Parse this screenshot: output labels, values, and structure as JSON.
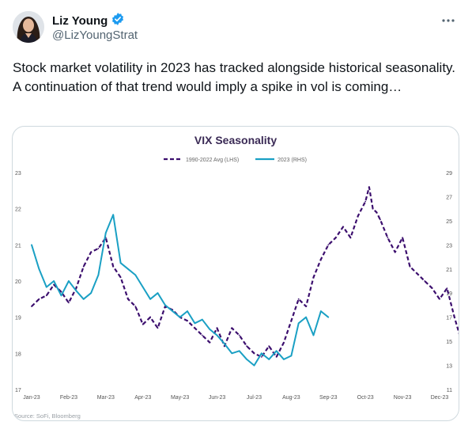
{
  "author": {
    "display_name": "Liz Young",
    "handle": "@LizYoungStrat",
    "verified": true,
    "verified_color": "#1d9bf0"
  },
  "icons": {
    "verified": "verified-badge-icon",
    "more": "more-options-icon"
  },
  "tweet": {
    "text": "Stock market volatility in 2023 has tracked alongside historical seasonality. A continuation of that trend would imply a spike in vol is coming…"
  },
  "chart_data": {
    "type": "line",
    "title": "VIX Seasonality",
    "source": "Source: SoFi, Bloomberg",
    "grid": false,
    "legend_position": "top",
    "x_tick_labels": [
      "Jan-23",
      "Feb-23",
      "Mar-23",
      "Apr-23",
      "May-23",
      "Jun-23",
      "Jul-23",
      "Aug-23",
      "Sep-23",
      "Oct-23",
      "Nov-23",
      "Dec-23"
    ],
    "y_left": {
      "ticks": [
        "17",
        "18",
        "19",
        "20",
        "21",
        "22",
        "23"
      ],
      "ylim": [
        17,
        23
      ]
    },
    "y_right": {
      "ticks": [
        "11",
        "13",
        "15",
        "17",
        "19",
        "21",
        "23",
        "25",
        "27",
        "29"
      ],
      "ylim": [
        11,
        29
      ]
    },
    "series": [
      {
        "name": "1990-2022 Avg (LHS)",
        "axis": "left",
        "color": "#3c0f6e",
        "dashed": true,
        "x": [
          0,
          0.2,
          0.4,
          0.6,
          0.8,
          1,
          1.2,
          1.4,
          1.6,
          1.8,
          2,
          2.2,
          2.4,
          2.6,
          2.8,
          3,
          3.2,
          3.4,
          3.6,
          3.8,
          4,
          4.2,
          4.4,
          4.6,
          4.8,
          5,
          5.2,
          5.4,
          5.6,
          5.8,
          6,
          6.2,
          6.4,
          6.6,
          6.8,
          7,
          7.2,
          7.4,
          7.6,
          7.8,
          8,
          8.2,
          8.4,
          8.6,
          8.8,
          9,
          9.1,
          9.2,
          9.3,
          9.4,
          9.6,
          9.8,
          10,
          10.2,
          10.4,
          10.6,
          10.8,
          11,
          11.2,
          11.4,
          11.6
        ],
        "y": [
          19.3,
          19.5,
          19.6,
          19.9,
          19.7,
          19.4,
          19.8,
          20.4,
          20.8,
          20.9,
          21.2,
          20.4,
          20.1,
          19.5,
          19.3,
          18.8,
          19.0,
          18.7,
          19.3,
          19.2,
          19.0,
          18.9,
          18.7,
          18.5,
          18.3,
          18.7,
          18.2,
          18.7,
          18.5,
          18.2,
          18.0,
          17.9,
          18.2,
          17.9,
          18.3,
          18.9,
          19.5,
          19.3,
          20.1,
          20.6,
          21.0,
          21.2,
          21.5,
          21.2,
          21.8,
          22.2,
          22.6,
          22.0,
          21.9,
          21.7,
          21.2,
          20.8,
          21.2,
          20.4,
          20.2,
          20.0,
          19.8,
          19.5,
          19.8,
          19.0,
          18.3
        ]
      },
      {
        "name": "2023 (RHS)",
        "axis": "right",
        "color": "#1aa0c4",
        "dashed": false,
        "x": [
          0,
          0.2,
          0.4,
          0.6,
          0.8,
          1,
          1.2,
          1.4,
          1.6,
          1.8,
          2,
          2.2,
          2.4,
          2.6,
          2.8,
          3,
          3.2,
          3.4,
          3.6,
          3.8,
          4,
          4.2,
          4.4,
          4.6,
          4.8,
          5,
          5.2,
          5.4,
          5.6,
          5.8,
          6,
          6.2,
          6.4,
          6.6,
          6.8,
          7,
          7.2,
          7.4,
          7.6,
          7.8,
          8
        ],
        "y": [
          23.0,
          21.0,
          19.5,
          20.0,
          18.8,
          20.0,
          19.2,
          18.5,
          19.0,
          20.5,
          24.0,
          25.5,
          21.5,
          21.0,
          20.5,
          19.5,
          18.5,
          19.0,
          18.0,
          17.5,
          17.0,
          17.5,
          16.5,
          16.8,
          16.0,
          15.5,
          14.8,
          14.0,
          14.2,
          13.5,
          13.0,
          14.0,
          13.5,
          14.2,
          13.5,
          13.8,
          16.5,
          17.0,
          15.5,
          17.5,
          17.0
        ]
      }
    ]
  }
}
